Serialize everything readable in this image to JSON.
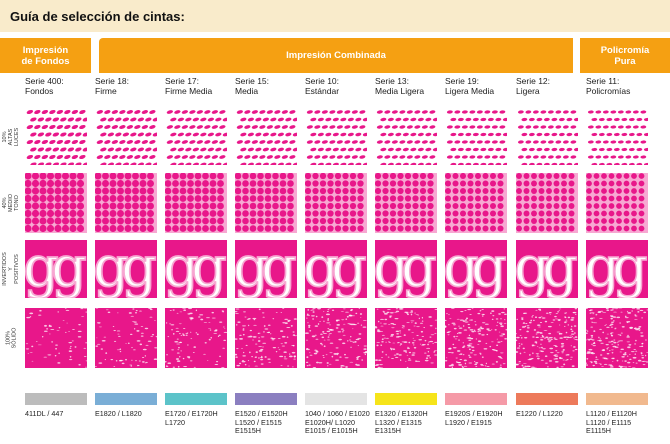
{
  "title": "Guía de selección de cintas:",
  "categories": [
    {
      "label": "Impresión\nde Fondos"
    },
    {
      "label": "Impresión Combinada"
    },
    {
      "label": "Policromía\nPura"
    }
  ],
  "row_labels": [
    "10%\nALTAS LUCES",
    "40%\nMEDIO TONO",
    "INVERTIDOS\nY POSITIVOS",
    "100%\nSÓLIDO"
  ],
  "series": [
    {
      "name": "Serie 400:\nFondos",
      "parts": "411DL / 447",
      "strip_color": "#bcbcbc",
      "dot_pct": 0.62
    },
    {
      "name": "Serie 18:\nFirme",
      "parts": "E1820 / L1820",
      "strip_color": "#7aaed6",
      "dot_pct": 0.58
    },
    {
      "name": "Serie 17:\nFirme Media",
      "parts": "E1720 / E1720H\nL1720",
      "strip_color": "#5cc3c9",
      "dot_pct": 0.55
    },
    {
      "name": "Serie 15:\nMedia",
      "parts": "E1520 / E1520H\nL1520 / E1515\nE1515H",
      "strip_color": "#8b7fc0",
      "dot_pct": 0.5
    },
    {
      "name": "Serie 10:\nEstándar",
      "parts": "1040 / 1060 / E1020\nE1020H/ L1020\nE1015 / E1015H",
      "strip_color": "#e4e4e4",
      "dot_pct": 0.44
    },
    {
      "name": "Serie 13:\nMedia Ligera",
      "parts": "E1320 / E1320H\nL1320 / E1315\nE1315H",
      "strip_color": "#f6e41a",
      "dot_pct": 0.42
    },
    {
      "name": "Serie 19:\nLigera Media",
      "parts": "E1920S / E1920H\nL1920 / E1915",
      "strip_color": "#f59aa7",
      "dot_pct": 0.38
    },
    {
      "name": "Serie 12:\nLigera",
      "parts": "E1220 / L1220",
      "strip_color": "#ed7a5b",
      "dot_pct": 0.35
    },
    {
      "name": "Serie 11:\nPolicromías",
      "parts": "L1120 / E1120H\nL1120 / E1115\nE1115H",
      "strip_color": "#f1b98e",
      "dot_pct": 0.32
    }
  ],
  "colors": {
    "ink": "#e8178a",
    "ink_light": "#f7a8d2",
    "accent": "#f5a012",
    "title_bg": "#f9ebcb"
  },
  "glyph": "g"
}
